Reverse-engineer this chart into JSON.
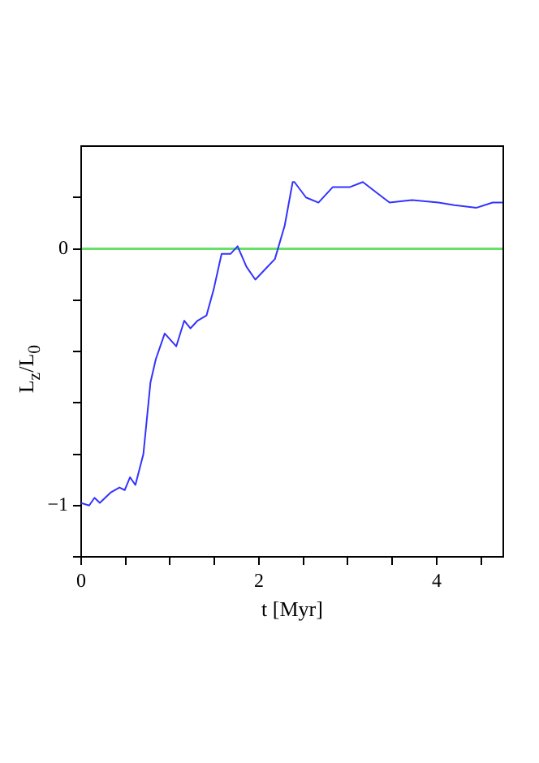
{
  "chart_data": {
    "type": "line",
    "xlabel": "t [Myr]",
    "ylabel": "L$_{z}$/L$_{0}$",
    "xlim": [
      0,
      4.75
    ],
    "ylim": [
      -1.2,
      0.4
    ],
    "xticks": [
      0,
      {
        "value": 0.5,
        "label": null
      },
      {
        "value": 1,
        "label": null
      },
      {
        "value": 1.5,
        "label": null
      },
      2,
      {
        "value": 2.5,
        "label": null
      },
      {
        "value": 3,
        "label": null
      },
      {
        "value": 3.5,
        "label": null
      },
      4,
      {
        "value": 4.5,
        "label": null
      }
    ],
    "yticks": [
      {
        "value": -1.2,
        "label": null
      },
      {
        "value": -1,
        "label": "−1"
      },
      {
        "value": -0.8,
        "label": null
      },
      {
        "value": -0.6,
        "label": null
      },
      {
        "value": -0.4,
        "label": null
      },
      {
        "value": -0.2,
        "label": null
      },
      0,
      {
        "value": 0.2,
        "label": null
      }
    ],
    "grid": false,
    "legend": false,
    "marker": "none",
    "line_style": "solid",
    "ref_lines": [
      {
        "axis": "y",
        "value": 0,
        "color": "#66e066"
      }
    ],
    "series": [
      {
        "color": "#3333ff",
        "x": [
          0,
          0.09,
          0.15,
          0.21,
          0.33,
          0.43,
          0.49,
          0.55,
          0.61,
          0.7,
          0.78,
          0.84,
          0.94,
          1.07,
          1.16,
          1.23,
          1.31,
          1.41,
          1.49,
          1.58,
          1.68,
          1.76,
          1.86,
          1.96,
          2.07,
          2.18,
          2.29,
          2.38,
          2.4,
          2.53,
          2.67,
          2.83,
          3.02,
          3.17,
          3.32,
          3.47,
          3.72,
          4.02,
          4.2,
          4.45,
          4.63,
          4.74
        ],
        "values": [
          -0.99,
          -1.0,
          -0.97,
          -0.99,
          -0.95,
          -0.93,
          -0.94,
          -0.89,
          -0.92,
          -0.8,
          -0.52,
          -0.43,
          -0.33,
          -0.38,
          -0.28,
          -0.31,
          -0.28,
          -0.26,
          -0.16,
          -0.02,
          -0.02,
          0.01,
          -0.07,
          -0.12,
          -0.08,
          -0.04,
          0.09,
          0.26,
          0.26,
          0.2,
          0.18,
          0.24,
          0.24,
          0.26,
          0.22,
          0.18,
          0.19,
          0.18,
          0.17,
          0.16,
          0.18,
          0.18
        ]
      }
    ]
  }
}
